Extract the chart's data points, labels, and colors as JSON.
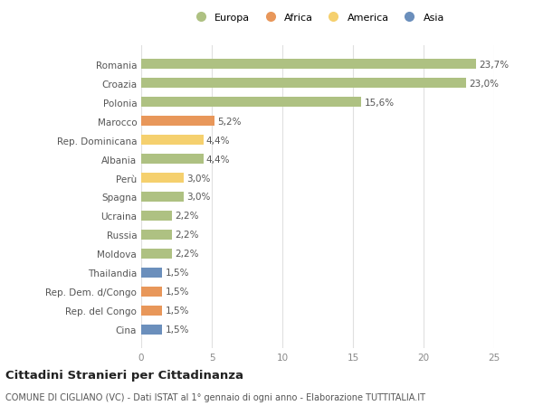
{
  "categories": [
    "Cina",
    "Rep. del Congo",
    "Rep. Dem. d/Congo",
    "Thailandia",
    "Moldova",
    "Russia",
    "Ucraina",
    "Spagna",
    "Perù",
    "Albania",
    "Rep. Dominicana",
    "Marocco",
    "Polonia",
    "Croazia",
    "Romania"
  ],
  "values": [
    1.5,
    1.5,
    1.5,
    1.5,
    2.2,
    2.2,
    2.2,
    3.0,
    3.0,
    4.4,
    4.4,
    5.2,
    15.6,
    23.0,
    23.7
  ],
  "labels": [
    "1,5%",
    "1,5%",
    "1,5%",
    "1,5%",
    "2,2%",
    "2,2%",
    "2,2%",
    "3,0%",
    "3,0%",
    "4,4%",
    "4,4%",
    "5,2%",
    "15,6%",
    "23,0%",
    "23,7%"
  ],
  "colors": [
    "#6b8fbc",
    "#e8975a",
    "#e8975a",
    "#6b8fbc",
    "#aec182",
    "#aec182",
    "#aec182",
    "#aec182",
    "#f5d06e",
    "#aec182",
    "#f5d06e",
    "#e8975a",
    "#aec182",
    "#aec182",
    "#aec182"
  ],
  "legend_labels": [
    "Europa",
    "Africa",
    "America",
    "Asia"
  ],
  "legend_colors": [
    "#aec182",
    "#e8975a",
    "#f5d06e",
    "#6b8fbc"
  ],
  "title": "Cittadini Stranieri per Cittadinanza",
  "subtitle": "COMUNE DI CIGLIANO (VC) - Dati ISTAT al 1° gennaio di ogni anno - Elaborazione TUTTITALIA.IT",
  "xlim": [
    0,
    25
  ],
  "xticks": [
    0,
    5,
    10,
    15,
    20,
    25
  ],
  "background_color": "#ffffff",
  "bar_height": 0.55,
  "grid_color": "#e0e0e0",
  "label_fontsize": 7.5,
  "tick_fontsize": 7.5,
  "title_fontsize": 9.5,
  "subtitle_fontsize": 7.0
}
